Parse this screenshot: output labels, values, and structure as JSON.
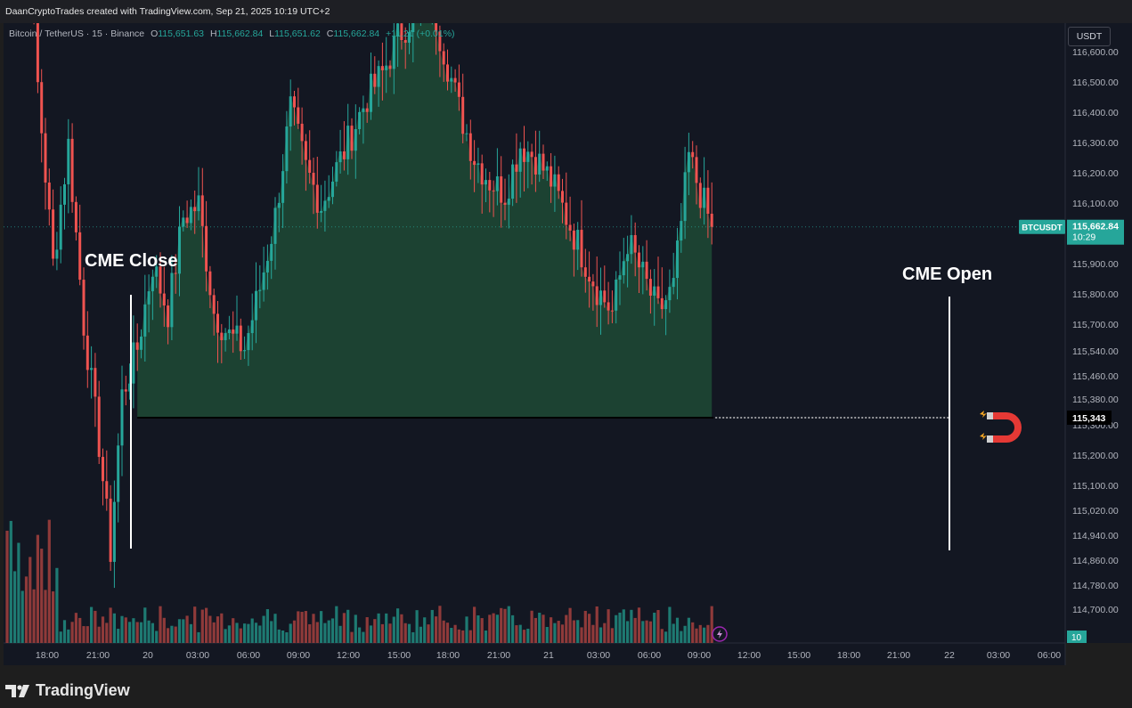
{
  "header": {
    "attribution": "DaanCryptoTrades created with TradingView.com, Sep 21, 2025 10:19 UTC+2"
  },
  "legend": {
    "symbol": "Bitcoin / TetherUS · 15 · Binance",
    "open_label": "O",
    "open": "115,651.63",
    "high_label": "H",
    "high": "115,662.84",
    "low_label": "L",
    "low": "115,651.62",
    "close_label": "C",
    "close": "115,662.84",
    "change": "+11.21 (+0.01%)"
  },
  "currency_button": "USDT",
  "price_axis": {
    "ticks": [
      "116,600.00",
      "116,500.00",
      "116,400.00",
      "116,300.00",
      "116,200.00",
      "116,100.00",
      "116,000.00",
      "115,900.00",
      "115,800.00",
      "115,700.00",
      "115,540.00",
      "115,460.00",
      "115,380.00",
      "115,300.00",
      "115,200.00",
      "115,100.00",
      "115,020.00",
      "114,940.00",
      "114,860.00",
      "114,780.00",
      "114,700.00"
    ],
    "last_price_label": "BTCUSDT",
    "last_price": "115,662.84",
    "countdown": "10:29",
    "gap_price_label": "115,343",
    "volume_label": "10"
  },
  "time_axis": {
    "ticks": [
      "18:00",
      "21:00",
      "20",
      "03:00",
      "06:00",
      "09:00",
      "12:00",
      "15:00",
      "18:00",
      "21:00",
      "21",
      "03:00",
      "06:00",
      "09:00",
      "12:00",
      "15:00",
      "18:00",
      "21:00",
      "22",
      "03:00",
      "06:00"
    ]
  },
  "annotations": {
    "cme_close": "CME Close",
    "cme_open": "CME Open"
  },
  "branding": {
    "logo_text": "TradingView"
  },
  "colors": {
    "background": "#131722",
    "up": "#26a69a",
    "down": "#ef5350",
    "gap_fill": "#1f4a35",
    "volume_up": "#1e7a72",
    "volume_down": "#8f3a3a",
    "magnet": "#e53935"
  },
  "chart_data": {
    "type": "candlestick",
    "title": "Bitcoin / TetherUS · 15 · Binance",
    "xlabel": "",
    "ylabel": "",
    "ylim": [
      114640,
      116660
    ],
    "x_ticks": [
      "18:00",
      "21:00",
      "20",
      "03:00",
      "06:00",
      "09:00",
      "12:00",
      "15:00",
      "18:00",
      "21:00",
      "21",
      "03:00",
      "06:00",
      "09:00",
      "12:00",
      "15:00",
      "18:00",
      "21:00",
      "22",
      "03:00",
      "06:00"
    ],
    "close_path": [
      {
        "t": 0,
        "c": 116200
      },
      {
        "t": 4,
        "c": 116320
      },
      {
        "t": 8,
        "c": 115900
      },
      {
        "t": 12,
        "c": 115600
      },
      {
        "t": 16,
        "c": 115800
      },
      {
        "t": 20,
        "c": 115500
      },
      {
        "t": 24,
        "c": 115300
      },
      {
        "t": 27,
        "c": 115120
      },
      {
        "t": 30,
        "c": 115380
      },
      {
        "t": 34,
        "c": 115460
      },
      {
        "t": 38,
        "c": 115600
      },
      {
        "t": 42,
        "c": 115520
      },
      {
        "t": 46,
        "c": 115680
      },
      {
        "t": 50,
        "c": 115700
      },
      {
        "t": 54,
        "c": 115520
      },
      {
        "t": 58,
        "c": 115480
      },
      {
        "t": 62,
        "c": 115460
      },
      {
        "t": 66,
        "c": 115560
      },
      {
        "t": 70,
        "c": 115680
      },
      {
        "t": 74,
        "c": 115860
      },
      {
        "t": 78,
        "c": 115760
      },
      {
        "t": 82,
        "c": 115700
      },
      {
        "t": 86,
        "c": 115760
      },
      {
        "t": 90,
        "c": 115820
      },
      {
        "t": 94,
        "c": 115880
      },
      {
        "t": 98,
        "c": 115920
      },
      {
        "t": 102,
        "c": 115980
      },
      {
        "t": 106,
        "c": 116020
      },
      {
        "t": 110,
        "c": 116060
      },
      {
        "t": 114,
        "c": 115960
      },
      {
        "t": 118,
        "c": 115860
      },
      {
        "t": 122,
        "c": 115780
      },
      {
        "t": 126,
        "c": 115740
      },
      {
        "t": 130,
        "c": 115720
      },
      {
        "t": 134,
        "c": 115800
      },
      {
        "t": 138,
        "c": 115780
      },
      {
        "t": 142,
        "c": 115740
      },
      {
        "t": 146,
        "c": 115680
      },
      {
        "t": 150,
        "c": 115620
      },
      {
        "t": 154,
        "c": 115560
      },
      {
        "t": 158,
        "c": 115520
      },
      {
        "t": 162,
        "c": 115640
      },
      {
        "t": 166,
        "c": 115580
      },
      {
        "t": 170,
        "c": 115520
      },
      {
        "t": 174,
        "c": 115560
      },
      {
        "t": 178,
        "c": 115780
      },
      {
        "t": 182,
        "c": 115700
      },
      {
        "t": 184,
        "c": 115663
      }
    ],
    "cme_close_price": 115343,
    "last_price": 115662.84,
    "volume_axis_label": "10"
  }
}
